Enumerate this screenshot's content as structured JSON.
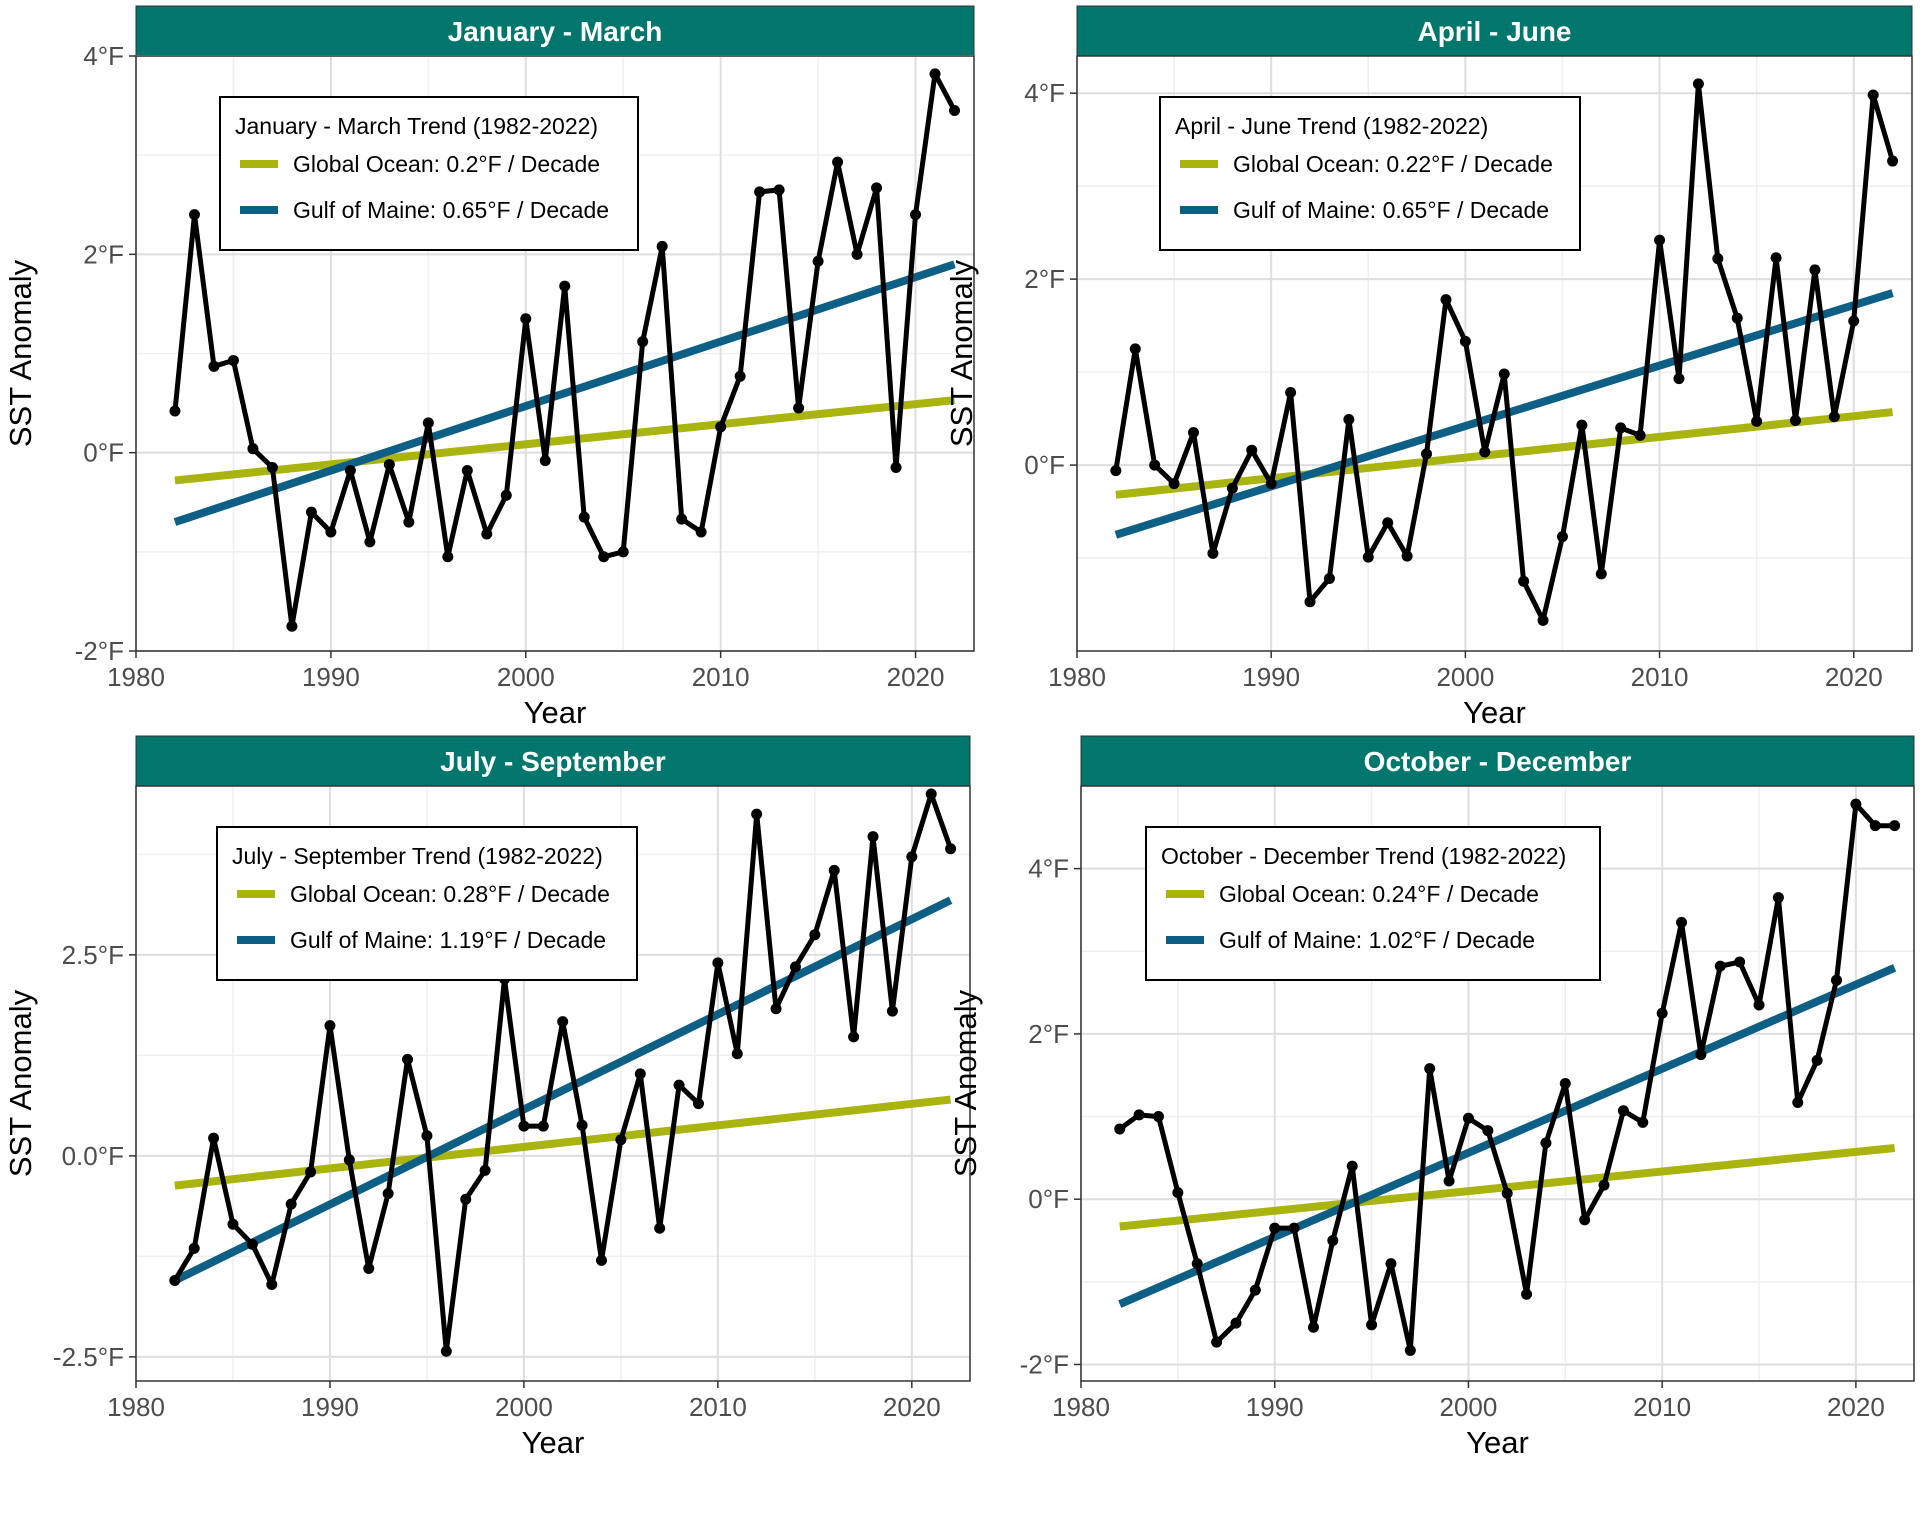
{
  "chart_data": [
    {
      "type": "line",
      "title": "January - March",
      "xlabel": "Year",
      "ylabel": "SST Anomaly",
      "xlim": [
        1980,
        2023
      ],
      "ylim": [
        -2,
        4
      ],
      "xticks": [
        1980,
        1990,
        2000,
        2010,
        2020
      ],
      "yticks": [
        -2,
        0,
        2,
        4
      ],
      "ytick_labels": [
        "-2°F",
        "0°F",
        "2°F",
        "4°F"
      ],
      "legend_title": "January - March Trend (1982-2022)",
      "trends": [
        {
          "name": "Global Ocean: 0.2°F / Decade",
          "color": "#a9b40f",
          "x": [
            1982,
            2022
          ],
          "y": [
            -0.28,
            0.53
          ]
        },
        {
          "name": "Gulf of Maine: 0.65°F / Decade",
          "color": "#0d5f86",
          "x": [
            1982,
            2022
          ],
          "y": [
            -0.7,
            1.9
          ]
        }
      ],
      "series": [
        {
          "name": "Gulf of Maine",
          "color": "#000000",
          "x": [
            1982,
            1983,
            1984,
            1985,
            1986,
            1987,
            1988,
            1989,
            1990,
            1991,
            1992,
            1993,
            1994,
            1995,
            1996,
            1997,
            1998,
            1999,
            2000,
            2001,
            2002,
            2003,
            2004,
            2005,
            2006,
            2007,
            2008,
            2009,
            2010,
            2011,
            2012,
            2013,
            2014,
            2015,
            2016,
            2017,
            2018,
            2019,
            2020,
            2021,
            2022
          ],
          "values": [
            0.42,
            2.4,
            0.87,
            0.93,
            0.04,
            -0.15,
            -1.75,
            -0.6,
            -0.8,
            -0.18,
            -0.9,
            -0.12,
            -0.7,
            0.3,
            -1.05,
            -0.18,
            -0.82,
            -0.43,
            1.35,
            -0.08,
            1.68,
            -0.65,
            -1.05,
            -1.0,
            1.12,
            2.08,
            -0.67,
            -0.8,
            0.26,
            0.77,
            2.63,
            2.65,
            0.45,
            1.93,
            2.93,
            2.0,
            2.67,
            -0.15,
            2.4,
            3.82,
            3.45
          ]
        }
      ]
    },
    {
      "type": "line",
      "title": "April - June",
      "xlabel": "Year",
      "ylabel": "SST Anomaly",
      "xlim": [
        1980,
        2023
      ],
      "ylim": [
        -2,
        4.4
      ],
      "xticks": [
        1980,
        1990,
        2000,
        2010,
        2020
      ],
      "yticks": [
        0,
        2,
        4
      ],
      "ytick_labels": [
        "0°F",
        "2°F",
        "4°F"
      ],
      "legend_title": "April - June Trend (1982-2022)",
      "trends": [
        {
          "name": "Global Ocean: 0.22°F / Decade",
          "color": "#a9b40f",
          "x": [
            1982,
            2022
          ],
          "y": [
            -0.32,
            0.57
          ]
        },
        {
          "name": "Gulf of Maine: 0.65°F / Decade",
          "color": "#0d5f86",
          "x": [
            1982,
            2022
          ],
          "y": [
            -0.75,
            1.85
          ]
        }
      ],
      "series": [
        {
          "name": "Gulf of Maine",
          "color": "#000000",
          "x": [
            1982,
            1983,
            1984,
            1985,
            1986,
            1987,
            1988,
            1989,
            1990,
            1991,
            1992,
            1993,
            1994,
            1995,
            1996,
            1997,
            1998,
            1999,
            2000,
            2001,
            2002,
            2003,
            2004,
            2005,
            2006,
            2007,
            2008,
            2009,
            2010,
            2011,
            2012,
            2013,
            2014,
            2015,
            2016,
            2017,
            2018,
            2019,
            2020,
            2021,
            2022
          ],
          "values": [
            -0.06,
            1.25,
            0.0,
            -0.2,
            0.35,
            -0.95,
            -0.25,
            0.16,
            -0.2,
            0.78,
            -1.47,
            -1.22,
            0.49,
            -0.99,
            -0.62,
            -0.98,
            0.12,
            1.78,
            1.33,
            0.14,
            0.98,
            -1.25,
            -1.67,
            -0.77,
            0.43,
            -1.17,
            0.4,
            0.32,
            2.42,
            0.93,
            4.1,
            2.22,
            1.58,
            0.47,
            2.23,
            0.48,
            2.1,
            0.52,
            1.55,
            3.98,
            3.27
          ]
        }
      ]
    },
    {
      "type": "line",
      "title": "July - September",
      "xlabel": "Year",
      "ylabel": "SST Anomaly",
      "xlim": [
        1980,
        2023
      ],
      "ylim": [
        -2.8,
        4.6
      ],
      "xticks": [
        1980,
        1990,
        2000,
        2010,
        2020
      ],
      "yticks": [
        -2.5,
        0,
        2.5
      ],
      "ytick_labels": [
        "-2.5°F",
        "0.0°F",
        "2.5°F"
      ],
      "legend_title": "July - September Trend (1982-2022)",
      "trends": [
        {
          "name": "Global Ocean: 0.28°F / Decade",
          "color": "#a9b40f",
          "x": [
            1982,
            2022
          ],
          "y": [
            -0.37,
            0.7
          ]
        },
        {
          "name": "Gulf of Maine: 1.19°F / Decade",
          "color": "#0d5f86",
          "x": [
            1982,
            2022
          ],
          "y": [
            -1.55,
            3.18
          ]
        }
      ],
      "series": [
        {
          "name": "Gulf of Maine",
          "color": "#000000",
          "x": [
            1982,
            1983,
            1984,
            1985,
            1986,
            1987,
            1988,
            1989,
            1990,
            1991,
            1992,
            1993,
            1994,
            1995,
            1996,
            1997,
            1998,
            1999,
            2000,
            2001,
            2002,
            2003,
            2004,
            2005,
            2006,
            2007,
            2008,
            2009,
            2010,
            2011,
            2012,
            2013,
            2014,
            2015,
            2016,
            2017,
            2018,
            2019,
            2020,
            2021,
            2022
          ],
          "values": [
            -1.55,
            -1.15,
            0.22,
            -0.85,
            -1.1,
            -1.6,
            -0.6,
            -0.2,
            1.62,
            -0.05,
            -1.4,
            -0.47,
            1.2,
            0.25,
            -2.43,
            -0.54,
            -0.18,
            2.2,
            0.37,
            0.37,
            1.67,
            0.38,
            -1.3,
            0.2,
            1.02,
            -0.9,
            0.88,
            0.65,
            2.4,
            1.27,
            4.25,
            1.83,
            2.35,
            2.75,
            3.55,
            1.48,
            3.97,
            1.8,
            3.72,
            4.5,
            3.82
          ]
        }
      ]
    },
    {
      "type": "line",
      "title": "October - December",
      "xlabel": "Year",
      "ylabel": "SST Anomaly",
      "xlim": [
        1980,
        2023
      ],
      "ylim": [
        -2.2,
        5
      ],
      "xticks": [
        1980,
        1990,
        2000,
        2010,
        2020
      ],
      "yticks": [
        -2,
        0,
        2,
        4
      ],
      "ytick_labels": [
        "-2°F",
        "0°F",
        "2°F",
        "4°F"
      ],
      "legend_title": "October - December Trend (1982-2022)",
      "trends": [
        {
          "name": "Global Ocean: 0.24°F / Decade",
          "color": "#a9b40f",
          "x": [
            1982,
            2022
          ],
          "y": [
            -0.33,
            0.62
          ]
        },
        {
          "name": "Gulf of Maine: 1.02°F / Decade",
          "color": "#0d5f86",
          "x": [
            1982,
            2022
          ],
          "y": [
            -1.27,
            2.8
          ]
        }
      ],
      "series": [
        {
          "name": "Gulf of Maine",
          "color": "#000000",
          "x": [
            1982,
            1983,
            1984,
            1985,
            1986,
            1987,
            1988,
            1989,
            1990,
            1991,
            1992,
            1993,
            1994,
            1995,
            1996,
            1997,
            1998,
            1999,
            2000,
            2001,
            2002,
            2003,
            2004,
            2005,
            2006,
            2007,
            2008,
            2009,
            2010,
            2011,
            2012,
            2013,
            2014,
            2015,
            2016,
            2017,
            2018,
            2019,
            2020,
            2021,
            2022
          ],
          "values": [
            0.85,
            1.02,
            1.0,
            0.08,
            -0.78,
            -1.73,
            -1.5,
            -1.1,
            -0.35,
            -0.35,
            -1.55,
            -0.5,
            0.4,
            -1.52,
            -0.78,
            -1.83,
            1.58,
            0.22,
            0.98,
            0.83,
            0.07,
            -1.15,
            0.68,
            1.4,
            -0.25,
            0.17,
            1.07,
            0.93,
            2.25,
            3.35,
            1.75,
            2.82,
            2.87,
            2.35,
            3.65,
            1.17,
            1.68,
            2.65,
            4.78,
            4.52,
            4.52
          ]
        }
      ]
    }
  ]
}
